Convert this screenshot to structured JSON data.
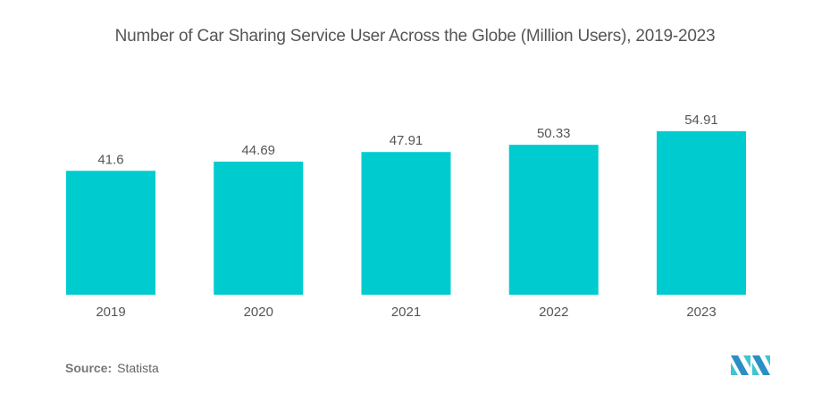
{
  "title": "Number of Car Sharing Service User Across the Globe (Million Users), 2019-2023",
  "source": {
    "label": "Source:",
    "value": "Statista"
  },
  "logo": {
    "name": "mordor-intelligence-logo",
    "colors": [
      "#2a8fc4",
      "#3fc6d0"
    ]
  },
  "colors": {
    "bar": "#00cccf",
    "text": "#555555"
  },
  "chart_data": {
    "type": "bar",
    "title": "Number of Car Sharing Service User Across the Globe (Million Users), 2019-2023",
    "categories": [
      "2019",
      "2020",
      "2021",
      "2022",
      "2023"
    ],
    "values": [
      41.6,
      44.69,
      47.91,
      50.33,
      54.91
    ],
    "value_labels": [
      "41.6",
      "44.69",
      "47.91",
      "50.33",
      "54.91"
    ],
    "xlabel": "",
    "ylabel": "",
    "ylim": [
      0,
      55
    ],
    "grid": false,
    "legend": "none"
  }
}
